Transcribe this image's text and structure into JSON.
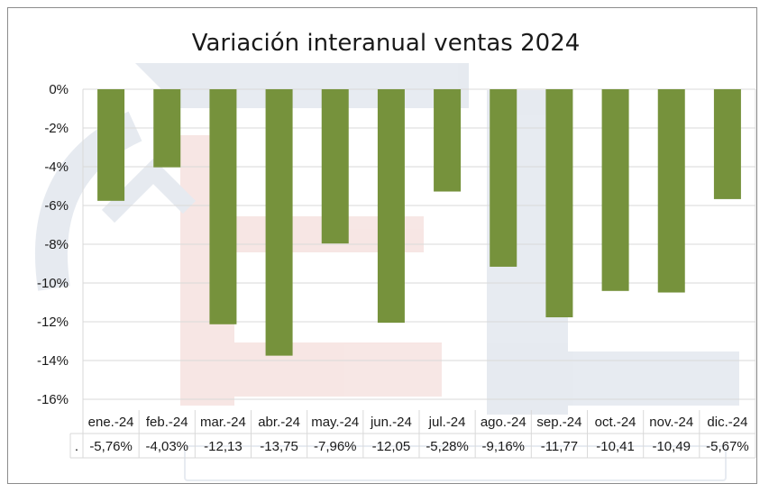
{
  "chart_data": {
    "type": "bar",
    "title": "Variación interanual ventas 2024",
    "xlabel": "",
    "ylabel": "",
    "categories": [
      "ene.-24",
      "feb.-24",
      "mar.-24",
      "abr.-24",
      "may.-24",
      "jun.-24",
      "jul.-24",
      "ago.-24",
      "sep.-24",
      "oct.-24",
      "nov.-24",
      "dic.-24"
    ],
    "values": [
      -5.76,
      -4.03,
      -12.13,
      -13.75,
      -7.96,
      -12.05,
      -5.28,
      -9.16,
      -11.77,
      -10.41,
      -10.49,
      -5.67
    ],
    "data_labels": [
      "-5,76%",
      "-4,03%",
      "-12,13",
      "-13,75",
      "-7,96%",
      "-12,05",
      "-5,28%",
      "-9,16%",
      "-11,77",
      "-10,41",
      "-10,49",
      "-5,67%"
    ],
    "table_row_key": ".",
    "yticks": [
      "0%",
      "-2%",
      "-4%",
      "-6%",
      "-8%",
      "-10%",
      "-12%",
      "-14%",
      "-16%"
    ],
    "ylim": [
      -16,
      0
    ],
    "grid": true,
    "legend": "none",
    "bar_color": "#76923c",
    "grid_color": "#d9d9d9"
  }
}
